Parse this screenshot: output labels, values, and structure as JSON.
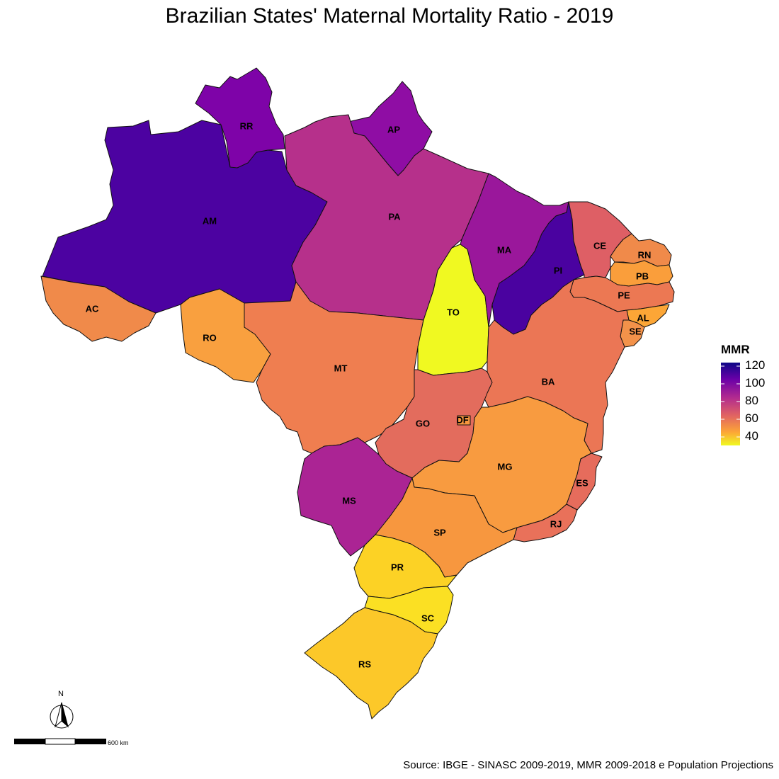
{
  "title": "Brazilian States' Maternal Mortality Ratio - 2019",
  "legend": {
    "title": "MMR",
    "ticks": [
      "120",
      "100",
      "80",
      "60",
      "40"
    ],
    "range": [
      35,
      122
    ],
    "colors": [
      "#0d0887",
      "#6a00a8",
      "#b12a90",
      "#e16462",
      "#fca636",
      "#f0f921"
    ]
  },
  "north_arrow": "N",
  "scale_bar_label": "600 km",
  "source": "Source: IBGE - SINASC 2009-2019, MMR 2009-2018 e Population Projections",
  "states": [
    {
      "code": "AM",
      "fill": "#4c02a1"
    },
    {
      "code": "RR",
      "fill": "#7e03a8"
    },
    {
      "code": "AP",
      "fill": "#8f0da4"
    },
    {
      "code": "PA",
      "fill": "#b6308b"
    },
    {
      "code": "AC",
      "fill": "#f08a4a"
    },
    {
      "code": "RO",
      "fill": "#f9a03f"
    },
    {
      "code": "MT",
      "fill": "#ef7e50"
    },
    {
      "code": "TO",
      "fill": "#f0f921"
    },
    {
      "code": "MA",
      "fill": "#9a179b"
    },
    {
      "code": "PI",
      "fill": "#4a02a0"
    },
    {
      "code": "CE",
      "fill": "#de5f65"
    },
    {
      "code": "RN",
      "fill": "#f08a4a"
    },
    {
      "code": "PB",
      "fill": "#fa9e3b"
    },
    {
      "code": "PE",
      "fill": "#ec7853"
    },
    {
      "code": "AL",
      "fill": "#fca636"
    },
    {
      "code": "SE",
      "fill": "#f3924a"
    },
    {
      "code": "BA",
      "fill": "#eb7655"
    },
    {
      "code": "GO",
      "fill": "#e36c5d"
    },
    {
      "code": "DF",
      "fill": "#f7973f"
    },
    {
      "code": "MS",
      "fill": "#ab2494"
    },
    {
      "code": "MG",
      "fill": "#f89b40"
    },
    {
      "code": "ES",
      "fill": "#e66c5c"
    },
    {
      "code": "RJ",
      "fill": "#e9715a"
    },
    {
      "code": "SP",
      "fill": "#f7973f"
    },
    {
      "code": "PR",
      "fill": "#fcd225"
    },
    {
      "code": "SC",
      "fill": "#fbe023"
    },
    {
      "code": "RS",
      "fill": "#fcc829"
    }
  ]
}
